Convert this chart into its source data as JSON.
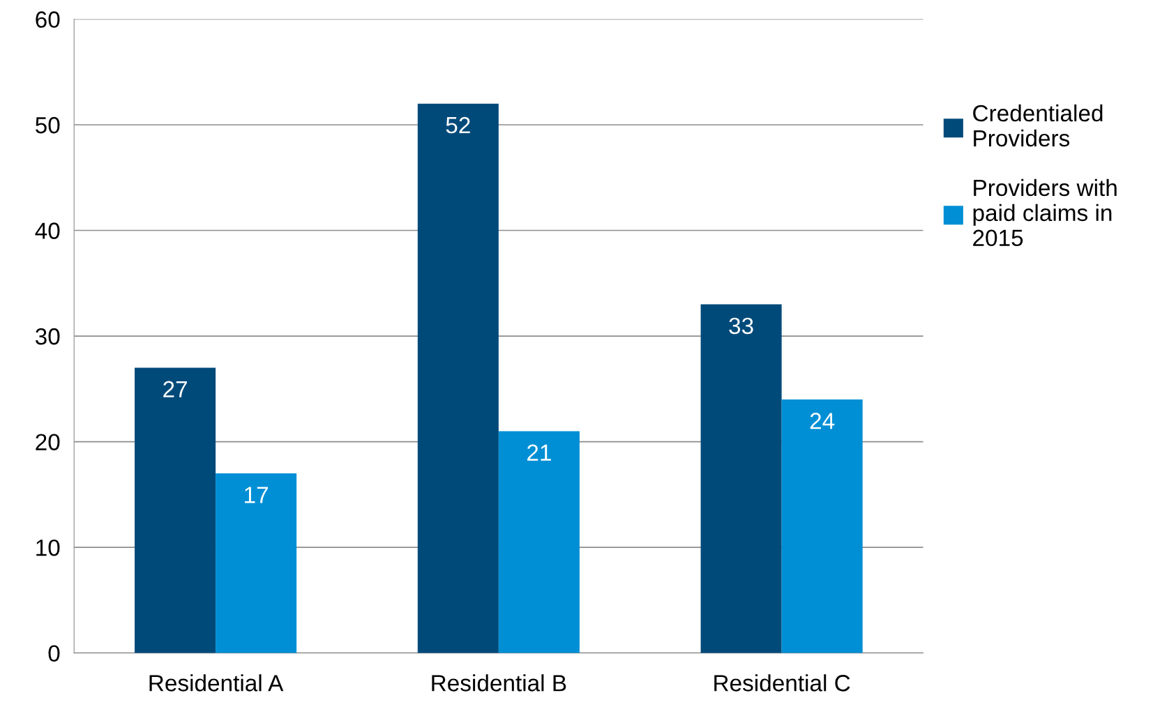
{
  "chart_data": {
    "type": "bar",
    "categories": [
      "Residential A",
      "Residential B",
      "Residential C"
    ],
    "series": [
      {
        "name": "Credentialed\nProviders",
        "color": "#004a7a",
        "values": [
          27,
          52,
          33
        ]
      },
      {
        "name": "Providers with\npaid claims in\n2015",
        "color": "#008fd5",
        "values": [
          17,
          21,
          24
        ]
      }
    ],
    "ylim": [
      0,
      60
    ],
    "yticks": [
      0,
      10,
      20,
      30,
      40,
      50,
      60
    ],
    "grid": "y",
    "legend": "right",
    "data_labels": true
  }
}
